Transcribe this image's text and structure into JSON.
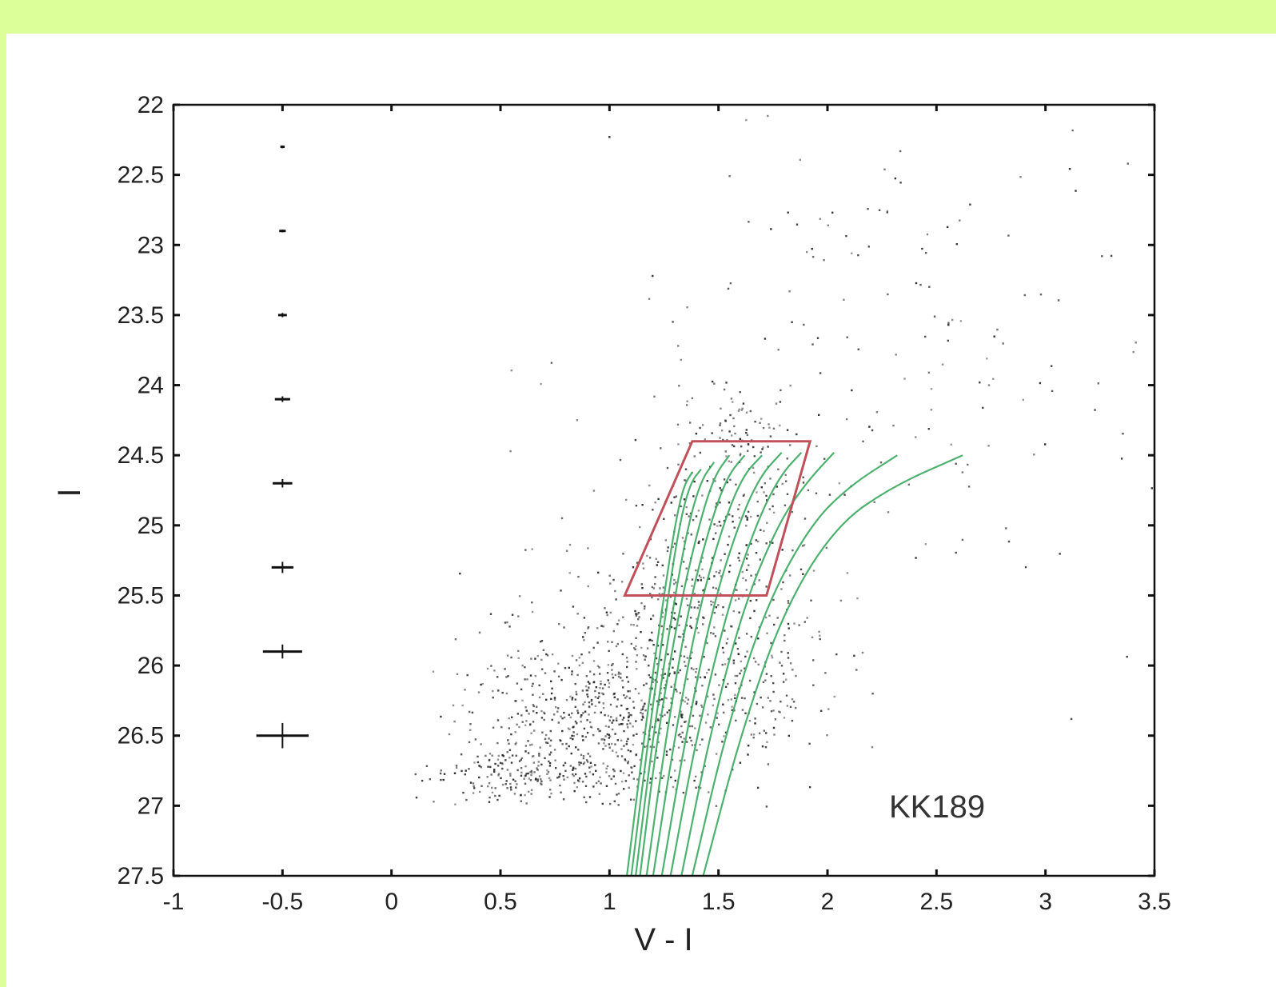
{
  "colors": {
    "page_background": "#ddff99",
    "panel_background": "#ffffff",
    "stars": "#222222",
    "isochrones": "#3aa860",
    "box": "#c0505a",
    "axes": "#111111"
  },
  "chart_data": {
    "type": "scatter",
    "title": "",
    "xlabel": "V - I",
    "ylabel": "I",
    "xlim": [
      -1,
      3.5
    ],
    "ylim": [
      27.5,
      22
    ],
    "y_inverted": true,
    "grid": false,
    "x_ticks": [
      -1,
      -0.5,
      0,
      0.5,
      1,
      1.5,
      2,
      2.5,
      3,
      3.5
    ],
    "x_tick_labels": [
      "-1",
      "-0.5",
      "0",
      "0.5",
      "1",
      "1.5",
      "2",
      "2.5",
      "3",
      "3.5"
    ],
    "y_ticks": [
      22,
      22.5,
      23,
      23.5,
      24,
      24.5,
      25,
      25.5,
      26,
      26.5,
      27,
      27.5
    ],
    "y_tick_labels": [
      "22",
      "22.5",
      "23",
      "23.5",
      "24",
      "24.5",
      "25",
      "25.5",
      "26",
      "26.5",
      "27",
      "27.5"
    ],
    "annotation": "KK189",
    "error_bars": {
      "x": -0.5,
      "points": [
        {
          "I": 22.3,
          "err_color": 0.01,
          "err_mag": 0.01
        },
        {
          "I": 22.9,
          "err_color": 0.015,
          "err_mag": 0.01
        },
        {
          "I": 23.5,
          "err_color": 0.02,
          "err_mag": 0.015
        },
        {
          "I": 24.1,
          "err_color": 0.035,
          "err_mag": 0.02
        },
        {
          "I": 24.7,
          "err_color": 0.045,
          "err_mag": 0.03
        },
        {
          "I": 25.3,
          "err_color": 0.05,
          "err_mag": 0.04
        },
        {
          "I": 25.9,
          "err_color": 0.09,
          "err_mag": 0.05
        },
        {
          "I": 26.5,
          "err_color": 0.12,
          "err_mag": 0.09
        }
      ]
    },
    "selection_box": [
      [
        1.07,
        25.5
      ],
      [
        1.38,
        24.4
      ],
      [
        1.92,
        24.4
      ],
      [
        1.72,
        25.5
      ]
    ],
    "isochrones": [
      {
        "points": [
          [
            1.08,
            27.5
          ],
          [
            1.16,
            26.5
          ],
          [
            1.24,
            25.6
          ],
          [
            1.3,
            25.0
          ],
          [
            1.34,
            24.72
          ],
          [
            1.38,
            24.62
          ]
        ]
      },
      {
        "points": [
          [
            1.1,
            27.5
          ],
          [
            1.18,
            26.5
          ],
          [
            1.26,
            25.6
          ],
          [
            1.32,
            25.0
          ],
          [
            1.37,
            24.7
          ],
          [
            1.42,
            24.6
          ]
        ]
      },
      {
        "points": [
          [
            1.12,
            27.5
          ],
          [
            1.2,
            26.5
          ],
          [
            1.29,
            25.6
          ],
          [
            1.36,
            25.0
          ],
          [
            1.42,
            24.68
          ],
          [
            1.48,
            24.55
          ]
        ]
      },
      {
        "points": [
          [
            1.14,
            27.5
          ],
          [
            1.22,
            26.5
          ],
          [
            1.32,
            25.6
          ],
          [
            1.41,
            25.0
          ],
          [
            1.48,
            24.65
          ],
          [
            1.55,
            24.5
          ]
        ]
      },
      {
        "points": [
          [
            1.17,
            27.5
          ],
          [
            1.26,
            26.5
          ],
          [
            1.36,
            25.6
          ],
          [
            1.46,
            25.0
          ],
          [
            1.54,
            24.65
          ],
          [
            1.62,
            24.5
          ]
        ]
      },
      {
        "points": [
          [
            1.2,
            27.5
          ],
          [
            1.3,
            26.5
          ],
          [
            1.41,
            25.6
          ],
          [
            1.52,
            25.0
          ],
          [
            1.61,
            24.65
          ],
          [
            1.7,
            24.5
          ]
        ]
      },
      {
        "points": [
          [
            1.24,
            27.5
          ],
          [
            1.35,
            26.5
          ],
          [
            1.47,
            25.6
          ],
          [
            1.59,
            25.0
          ],
          [
            1.69,
            24.65
          ],
          [
            1.79,
            24.48
          ]
        ]
      },
      {
        "points": [
          [
            1.28,
            27.5
          ],
          [
            1.4,
            26.5
          ],
          [
            1.54,
            25.6
          ],
          [
            1.67,
            25.0
          ],
          [
            1.78,
            24.65
          ],
          [
            1.88,
            24.48
          ]
        ]
      },
      {
        "points": [
          [
            1.33,
            27.5
          ],
          [
            1.46,
            26.5
          ],
          [
            1.61,
            25.6
          ],
          [
            1.77,
            25.0
          ],
          [
            1.9,
            24.7
          ],
          [
            2.03,
            24.48
          ]
        ]
      },
      {
        "points": [
          [
            1.38,
            27.5
          ],
          [
            1.53,
            26.5
          ],
          [
            1.71,
            25.6
          ],
          [
            1.92,
            25.0
          ],
          [
            2.1,
            24.72
          ],
          [
            2.32,
            24.5
          ]
        ]
      },
      {
        "points": [
          [
            1.43,
            27.5
          ],
          [
            1.6,
            26.5
          ],
          [
            1.8,
            25.6
          ],
          [
            2.04,
            25.0
          ],
          [
            2.3,
            24.72
          ],
          [
            2.62,
            24.5
          ]
        ]
      }
    ],
    "star_clumps": [
      {
        "center": [
          0.95,
          26.35
        ],
        "spread": [
          0.3,
          0.35
        ],
        "count": 650
      },
      {
        "center": [
          0.6,
          26.75
        ],
        "spread": [
          0.22,
          0.14
        ],
        "count": 200
      },
      {
        "center": [
          1.3,
          25.7
        ],
        "spread": [
          0.2,
          0.4
        ],
        "count": 260
      },
      {
        "center": [
          1.55,
          24.9
        ],
        "spread": [
          0.2,
          0.3
        ],
        "count": 180
      },
      {
        "center": [
          1.6,
          24.3
        ],
        "spread": [
          0.12,
          0.15
        ],
        "count": 60
      },
      {
        "center": [
          1.7,
          26.1
        ],
        "spread": [
          0.2,
          0.35
        ],
        "count": 160
      },
      {
        "center": [
          2.4,
          23.7
        ],
        "spread": [
          0.7,
          0.9
        ],
        "count": 170
      }
    ]
  }
}
